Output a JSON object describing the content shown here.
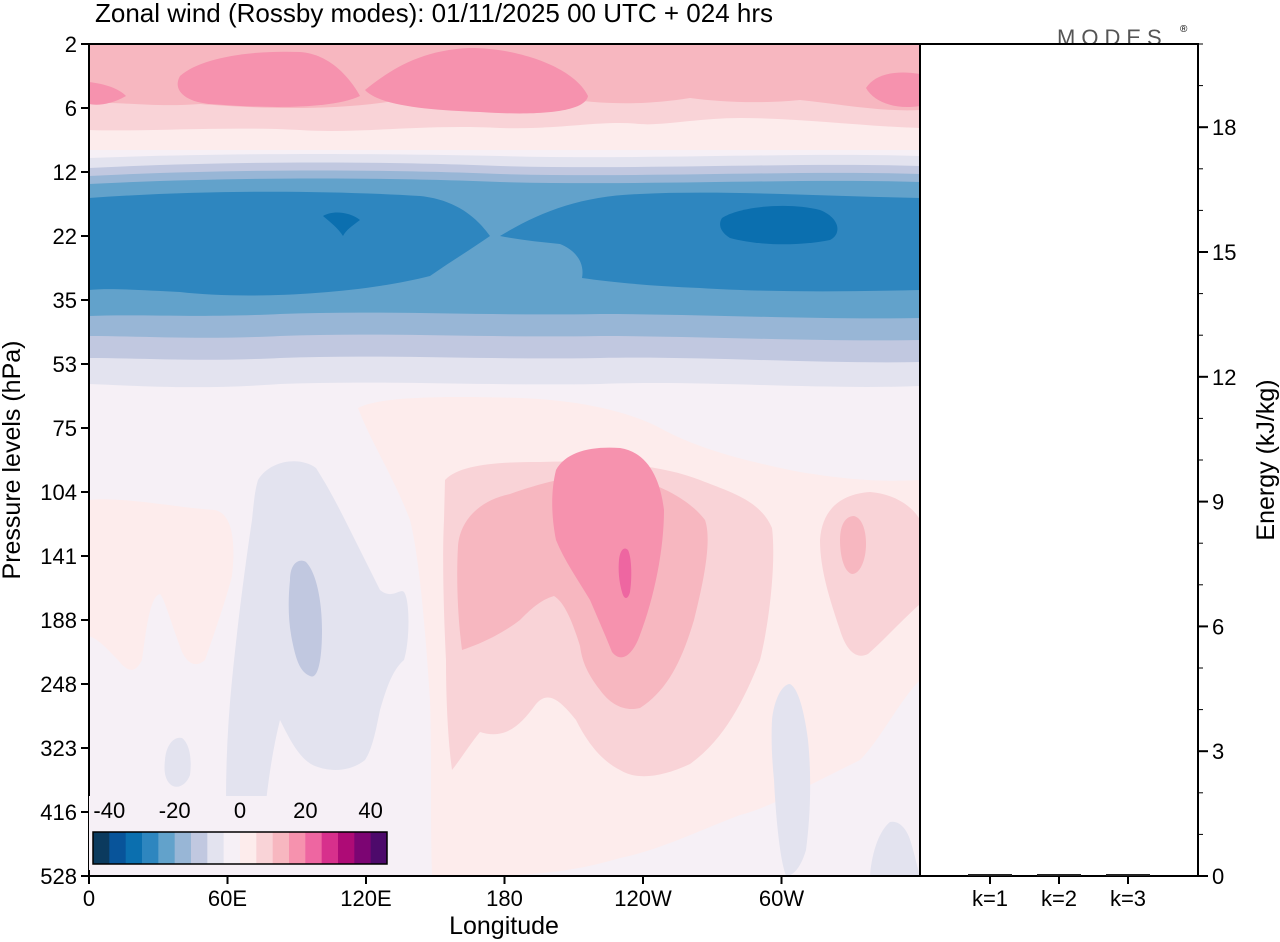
{
  "title": "Zonal wind (Rossby modes):  01/11/2025  00 UTC  + 024 hrs",
  "logo": "MODES",
  "logo_mark": "®",
  "chart_data": [
    {
      "type": "heatmap",
      "title": "Zonal wind (Rossby modes)",
      "xlabel": "Longitude",
      "ylabel": "Pressure levels (hPa)",
      "x_ticks": [
        "0",
        "60E",
        "120E",
        "180",
        "120W",
        "60W"
      ],
      "x_tick_values": [
        0,
        60,
        120,
        180,
        240,
        300
      ],
      "xlim": [
        0,
        360
      ],
      "y_ticks": [
        "2",
        "6",
        "12",
        "22",
        "35",
        "53",
        "75",
        "104",
        "141",
        "188",
        "248",
        "323",
        "416",
        "528"
      ],
      "colorbar": {
        "labels": [
          "-40",
          "-20",
          "0",
          "20",
          "40"
        ],
        "label_values": [
          -40,
          -20,
          0,
          20,
          40
        ],
        "range": [
          -45,
          45
        ],
        "step": 5,
        "colors": [
          "#0b3a5e",
          "#08549a",
          "#0b6faf",
          "#2e86bf",
          "#62a2cb",
          "#98b6d6",
          "#c1c8e0",
          "#e3e3ef",
          "#f6f0f6",
          "#fdecec",
          "#f9d3d7",
          "#f7b7c0",
          "#f692ae",
          "#ee66a1",
          "#d7308c",
          "#ae0b76",
          "#7c0573",
          "#4d0a6b"
        ]
      },
      "regions": [
        {
          "name": "stratospheric-easterly-jet",
          "p_top": 12,
          "p_bottom": 53,
          "u_min": -30,
          "u_max": -5
        },
        {
          "name": "upper-stratosphere-westerlies",
          "p_top": 2,
          "p_bottom": 10,
          "u_min": 5,
          "u_max": 20
        },
        {
          "name": "tropospheric-westerly-maximum",
          "lon": 230,
          "p": 141,
          "u_max": 20
        }
      ]
    },
    {
      "type": "bar",
      "categories": [
        "k=1",
        "k=2",
        "k=3"
      ],
      "values": [
        0.02,
        0.02,
        0.01
      ],
      "ylabel": "Energy (kJ/kg)",
      "ylim": [
        0,
        20
      ],
      "y_ticks": [
        "0",
        "3",
        "6",
        "9",
        "12",
        "15",
        "18"
      ]
    }
  ]
}
